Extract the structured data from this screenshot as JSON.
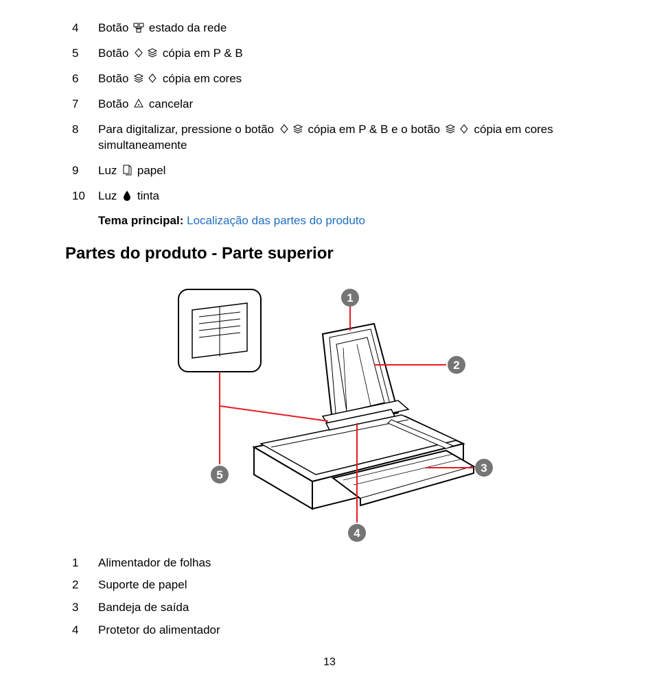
{
  "topList": [
    {
      "num": "4",
      "text_before": "Botão ",
      "icons": [
        "net"
      ],
      "text_after": " estado da rede"
    },
    {
      "num": "5",
      "text_before": "Botão ",
      "icons": [
        "diamond",
        "stack"
      ],
      "text_after": " cópia em P & B"
    },
    {
      "num": "6",
      "text_before": "Botão ",
      "icons": [
        "stack",
        "diamond"
      ],
      "text_after": " cópia em cores"
    },
    {
      "num": "7",
      "text_before": "Botão ",
      "icons": [
        "cancel"
      ],
      "text_after": " cancelar"
    },
    {
      "num": "8",
      "text_before": "Para digitalizar, pressione o botão ",
      "icons": [
        "diamond",
        "stack"
      ],
      "text_mid": " cópia em P & B e o botão ",
      "icons2": [
        "stack",
        "diamond"
      ],
      "text_after": " cópia em cores simultaneamente"
    },
    {
      "num": "9",
      "text_before": "Luz ",
      "icons": [
        "paper"
      ],
      "text_after": " papel"
    },
    {
      "num": "10",
      "text_before": "Luz ",
      "icons": [
        "drop"
      ],
      "text_after": " tinta"
    }
  ],
  "tema_label": "Tema principal: ",
  "tema_link": "Localização das partes do produto",
  "section_title": "Partes do produto - Parte superior",
  "diagram": {
    "callouts": [
      "1",
      "2",
      "3",
      "4",
      "5"
    ],
    "colors": {
      "line": "#e31b23",
      "circle_fill": "#757575",
      "circle_text": "#ffffff",
      "stroke": "#000000",
      "bg": "#ffffff"
    }
  },
  "bottomList": [
    {
      "num": "1",
      "text": "Alimentador de folhas"
    },
    {
      "num": "2",
      "text": "Suporte de papel"
    },
    {
      "num": "3",
      "text": "Bandeja de saída"
    },
    {
      "num": "4",
      "text": "Protetor do alimentador"
    }
  ],
  "page_number": "13",
  "icons_svg": {
    "net": "net",
    "diamond": "diamond",
    "stack": "stack",
    "cancel": "cancel",
    "paper": "paper",
    "drop": "drop"
  }
}
